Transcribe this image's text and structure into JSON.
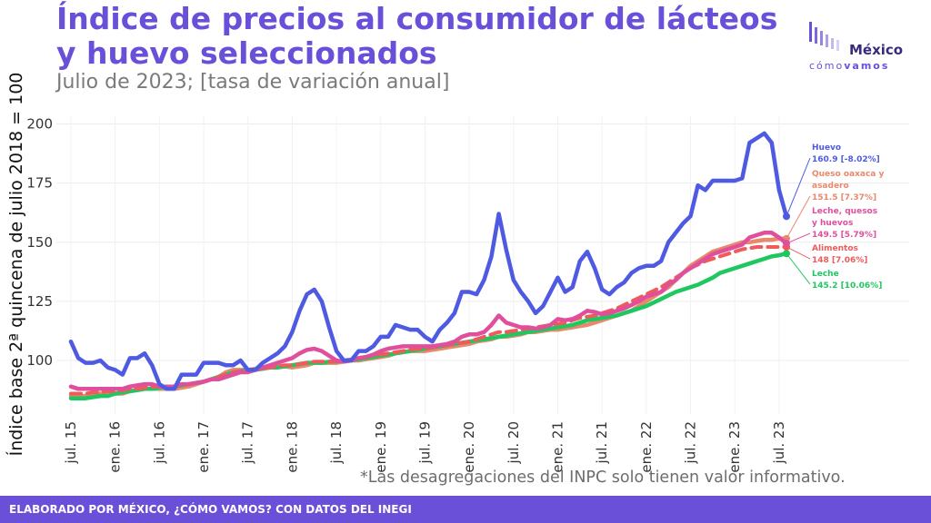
{
  "header": {
    "title": "Índice de precios al consumidor de lácteos y huevo seleccionados",
    "subtitle": "Julio de 2023; [tasa de variación anual]"
  },
  "logo": {
    "top": "México",
    "bottom_light": "cómo",
    "bottom_bold": "vamos"
  },
  "footnote": "*Las desagregaciones del INPC solo tienen valor informativo.",
  "footer": "ELABORADO POR MÉXICO, ¿CÓMO VAMOS? CON DATOS DEL INEGI",
  "colors": {
    "brand": "#6a4fd8",
    "huevo": "#4f5ae3",
    "queso": "#e8896b",
    "leche_quesos": "#e04f9c",
    "alimentos": "#ef5a5a",
    "leche": "#1fc760"
  },
  "chart_data": {
    "type": "line",
    "title": "Índice de precios al consumidor de lácteos y huevo seleccionados",
    "subtitle": "Julio de 2023; [tasa de variación anual]",
    "xlabel": "",
    "ylabel": "Índice base 2ª quincena de julio 2018 = 100",
    "ylim": [
      80,
      205
    ],
    "yticks": [
      100,
      125,
      150,
      175,
      200
    ],
    "x_tick_labels": [
      "jul. 15",
      "ene. 16",
      "jul. 16",
      "ene. 17",
      "jul. 17",
      "ene. 18",
      "jul. 18",
      "ene. 19",
      "jul. 19",
      "ene. 20",
      "jul. 20",
      "ene. 21",
      "jul. 21",
      "ene. 22",
      "jul. 22",
      "ene. 23",
      "jul. 23"
    ],
    "x_start": "jul. 15",
    "x_frequency": "monthly",
    "grid": true,
    "series": [
      {
        "name": "Huevo",
        "label": "160.9 [-8.02%]",
        "color_key": "huevo",
        "values": [
          108,
          101,
          99,
          99,
          100,
          97,
          96,
          94,
          101,
          101,
          103,
          98,
          90,
          88,
          88,
          94,
          94,
          94,
          99,
          99,
          99,
          98,
          98,
          100,
          96,
          96,
          99,
          101,
          103,
          106,
          112,
          121,
          128,
          130,
          125,
          114,
          104,
          100,
          100,
          104,
          104,
          106,
          110,
          110,
          115,
          114,
          113,
          113,
          110,
          108,
          113,
          116,
          120,
          129,
          129,
          128,
          134,
          144,
          162,
          147,
          134,
          129,
          125,
          120,
          123,
          129,
          135,
          129,
          131,
          142,
          146,
          139,
          130,
          128,
          131,
          133,
          137,
          139,
          140,
          140,
          142,
          150,
          154,
          158,
          161,
          174,
          172,
          176,
          176,
          176,
          176,
          177,
          192,
          194,
          196,
          192,
          172,
          160.9
        ]
      },
      {
        "name": "Queso oaxaca y asadero",
        "label": "151.5 [7.37%]",
        "color_key": "queso",
        "values": [
          85,
          85,
          85,
          85.5,
          86,
          86,
          86,
          86,
          87,
          87.5,
          88,
          88,
          88,
          88,
          88,
          88.5,
          89,
          90,
          91,
          92,
          93,
          95,
          96,
          96,
          96,
          96.5,
          97,
          97.5,
          97.5,
          97.5,
          97,
          97.5,
          98,
          99,
          99,
          99,
          99,
          99.5,
          100,
          100,
          100.5,
          101,
          101.5,
          102,
          103,
          103.5,
          104,
          104,
          104,
          104.5,
          105,
          105.5,
          106,
          106.5,
          107,
          108,
          108.5,
          109,
          110,
          110,
          110.5,
          111,
          112,
          112,
          112.5,
          113,
          113,
          113.5,
          114,
          114.5,
          115,
          116,
          117,
          118,
          119,
          120,
          121,
          123,
          125,
          127,
          129,
          131,
          134,
          137,
          140,
          142,
          144,
          146,
          147,
          148,
          149,
          150,
          150,
          150.5,
          151,
          151,
          151.5,
          151.5
        ]
      },
      {
        "name": "Leche, quesos y huevos",
        "label": "149.5 [5.79%]",
        "color_key": "leche_quesos",
        "values": [
          89,
          88,
          88,
          88,
          88,
          88,
          88,
          88,
          89,
          89.5,
          90,
          90,
          89,
          89,
          89,
          90,
          90,
          90.5,
          91,
          92,
          92,
          93,
          94,
          95,
          95,
          96,
          97,
          98,
          99,
          100,
          101,
          103,
          104.5,
          105,
          104,
          102,
          100,
          99.5,
          100,
          101,
          101.5,
          102.5,
          104,
          105,
          105.5,
          106,
          106,
          106,
          106,
          106,
          106.5,
          107,
          108,
          110,
          111,
          111,
          112,
          115,
          119,
          116,
          115,
          114,
          114,
          113.5,
          114,
          115,
          117.5,
          117,
          117.5,
          119,
          121,
          120.5,
          119.5,
          120,
          121,
          122,
          123.5,
          125,
          127,
          128,
          129,
          132,
          134,
          137,
          139,
          141,
          143,
          145,
          146,
          147,
          148,
          149,
          152,
          153,
          154,
          154,
          152,
          149.5
        ]
      },
      {
        "name": "Alimentos",
        "label": "148 [7.06%]",
        "color_key": "alimentos",
        "dashed": true,
        "values": [
          86,
          86,
          86,
          86.5,
          86.5,
          87,
          87,
          87.5,
          88,
          88,
          88.5,
          89,
          89,
          89,
          89,
          89.5,
          90,
          90.5,
          91,
          92,
          93,
          94,
          95,
          95.5,
          96,
          96,
          96.5,
          97,
          97.5,
          98,
          98,
          98.5,
          99,
          99.5,
          99.5,
          99.5,
          99.5,
          100,
          100.5,
          101,
          101.5,
          102,
          102.5,
          103,
          103.5,
          104,
          104.5,
          105,
          105,
          105.5,
          106,
          106.5,
          107,
          107.5,
          108,
          109,
          110,
          111,
          112,
          112,
          112.5,
          113,
          113.5,
          114,
          114.5,
          115,
          115.5,
          116,
          117,
          118,
          118.5,
          119,
          120,
          121,
          122,
          123.5,
          125,
          126.5,
          128,
          129.5,
          131,
          133,
          135,
          137,
          139,
          140.5,
          142,
          143,
          144,
          145,
          146,
          147,
          147.5,
          148,
          148,
          148,
          148,
          148
        ]
      },
      {
        "name": "Leche",
        "label": "145.2 [10.06%]",
        "color_key": "leche",
        "values": [
          84,
          84,
          84,
          84.5,
          85,
          85,
          86,
          86.5,
          87,
          87.5,
          88,
          88,
          88.5,
          89,
          89,
          89.5,
          90,
          90.5,
          91,
          92,
          93,
          94,
          95,
          95.5,
          96,
          96,
          96.5,
          97,
          97,
          97.5,
          98,
          98.5,
          99,
          99,
          99,
          99.5,
          99.5,
          100,
          100,
          100.5,
          101,
          101.5,
          102,
          102.5,
          103,
          103.5,
          104,
          104.5,
          105,
          105.5,
          106,
          106.5,
          107,
          107.5,
          108,
          108.5,
          109,
          109.5,
          110,
          110.5,
          111,
          111.5,
          112,
          112.5,
          113,
          113.5,
          114,
          114.5,
          115,
          116,
          117,
          117.5,
          118,
          118.5,
          119,
          120,
          121,
          122,
          123,
          124.5,
          126,
          127.5,
          129,
          130,
          131,
          132,
          133.5,
          135,
          137,
          138,
          139,
          140,
          141,
          142,
          143,
          144,
          144.5,
          145.2
        ]
      }
    ]
  }
}
